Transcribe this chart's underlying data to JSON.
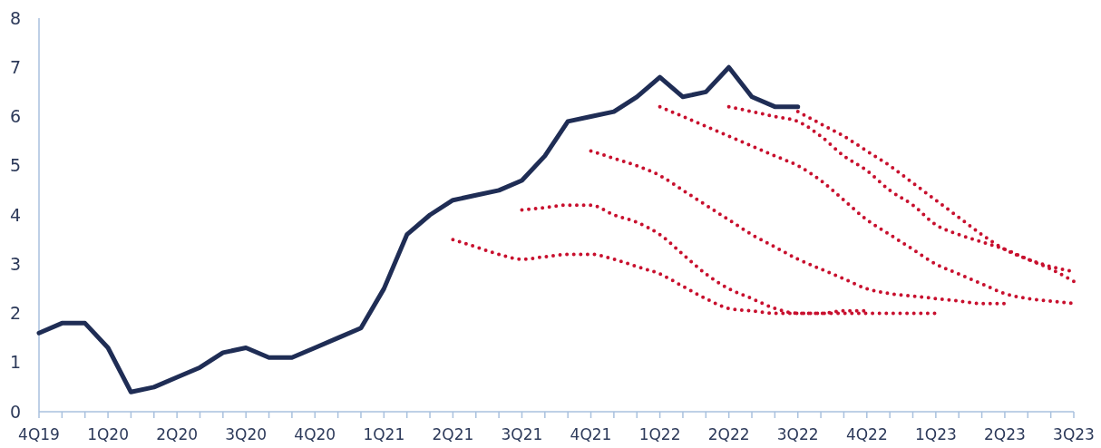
{
  "chart_data": {
    "type": "line",
    "ylim": [
      0,
      8
    ],
    "yticks": [
      0,
      1,
      2,
      3,
      4,
      5,
      6,
      7,
      8
    ],
    "categories": [
      "4Q19",
      null,
      null,
      "1Q20",
      null,
      null,
      "2Q20",
      null,
      null,
      "3Q20",
      null,
      null,
      "4Q20",
      null,
      null,
      "1Q21",
      null,
      null,
      "2Q21",
      null,
      null,
      "3Q21",
      null,
      null,
      "4Q21",
      null,
      null,
      "1Q22",
      null,
      null,
      "2Q22",
      null,
      null,
      "3Q22",
      null,
      null,
      "4Q22",
      null,
      null,
      "1Q23",
      null,
      null,
      "2Q23",
      null,
      null,
      "3Q23"
    ],
    "grid": false,
    "marker": "none",
    "series": [
      {
        "color": "#1f2d55",
        "line_style": "solid",
        "values": [
          1.6,
          1.8,
          1.8,
          1.3,
          0.4,
          0.5,
          0.7,
          0.9,
          1.2,
          1.3,
          1.1,
          1.1,
          1.3,
          1.5,
          1.7,
          2.5,
          3.6,
          4.0,
          4.3,
          4.4,
          4.5,
          4.7,
          5.2,
          5.9,
          6.0,
          6.1,
          6.4,
          6.8,
          6.4,
          6.5,
          7.0,
          6.4,
          6.2,
          6.2,
          null,
          null,
          null,
          null,
          null,
          null,
          null,
          null,
          null,
          null,
          null,
          null
        ]
      },
      {
        "color": "#c8102e",
        "line_style": "dotted",
        "values": [
          null,
          null,
          null,
          null,
          null,
          null,
          null,
          null,
          null,
          null,
          null,
          null,
          null,
          null,
          null,
          null,
          null,
          null,
          3.5,
          3.35,
          3.2,
          3.1,
          3.15,
          3.2,
          3.2,
          3.1,
          2.95,
          2.8,
          2.55,
          2.3,
          2.1,
          2.05,
          2.0,
          2.0,
          2.0,
          2.0,
          2.0,
          2.0,
          2.0,
          2.0,
          null,
          null,
          null,
          null,
          null,
          null
        ]
      },
      {
        "color": "#c8102e",
        "line_style": "dotted",
        "values": [
          null,
          null,
          null,
          null,
          null,
          null,
          null,
          null,
          null,
          null,
          null,
          null,
          null,
          null,
          null,
          null,
          null,
          null,
          null,
          null,
          null,
          4.1,
          4.15,
          4.2,
          4.2,
          4.0,
          3.85,
          3.6,
          3.2,
          2.8,
          2.5,
          2.3,
          2.1,
          2.0,
          2.0,
          2.05,
          2.05,
          null,
          null,
          null,
          null,
          null,
          null,
          null,
          null,
          null
        ]
      },
      {
        "color": "#c8102e",
        "line_style": "dotted",
        "values": [
          null,
          null,
          null,
          null,
          null,
          null,
          null,
          null,
          null,
          null,
          null,
          null,
          null,
          null,
          null,
          null,
          null,
          null,
          null,
          null,
          null,
          null,
          null,
          null,
          5.3,
          5.15,
          5.0,
          4.8,
          4.5,
          4.2,
          3.9,
          3.6,
          3.35,
          3.1,
          2.9,
          2.7,
          2.5,
          2.4,
          2.35,
          2.3,
          2.25,
          2.2,
          2.2,
          null,
          null,
          null
        ]
      },
      {
        "color": "#c8102e",
        "line_style": "dotted",
        "values": [
          null,
          null,
          null,
          null,
          null,
          null,
          null,
          null,
          null,
          null,
          null,
          null,
          null,
          null,
          null,
          null,
          null,
          null,
          null,
          null,
          null,
          null,
          null,
          null,
          null,
          null,
          null,
          6.2,
          6.0,
          5.8,
          5.6,
          5.4,
          5.2,
          5.0,
          4.7,
          4.3,
          3.9,
          3.6,
          3.3,
          3.0,
          2.8,
          2.6,
          2.4,
          2.3,
          2.25,
          2.2
        ]
      },
      {
        "color": "#c8102e",
        "line_style": "dotted",
        "values": [
          null,
          null,
          null,
          null,
          null,
          null,
          null,
          null,
          null,
          null,
          null,
          null,
          null,
          null,
          null,
          null,
          null,
          null,
          null,
          null,
          null,
          null,
          null,
          null,
          null,
          null,
          null,
          null,
          null,
          null,
          6.2,
          6.1,
          6.0,
          5.9,
          5.6,
          5.2,
          4.9,
          4.5,
          4.2,
          3.8,
          3.6,
          3.45,
          3.3,
          3.1,
          2.9,
          2.65
        ]
      },
      {
        "color": "#c8102e",
        "line_style": "dotted",
        "values": [
          null,
          null,
          null,
          null,
          null,
          null,
          null,
          null,
          null,
          null,
          null,
          null,
          null,
          null,
          null,
          null,
          null,
          null,
          null,
          null,
          null,
          null,
          null,
          null,
          null,
          null,
          null,
          null,
          null,
          null,
          null,
          null,
          null,
          6.1,
          5.85,
          5.6,
          5.3,
          5.0,
          4.65,
          4.3,
          3.95,
          3.6,
          3.3,
          3.1,
          2.95,
          2.85
        ]
      }
    ]
  }
}
